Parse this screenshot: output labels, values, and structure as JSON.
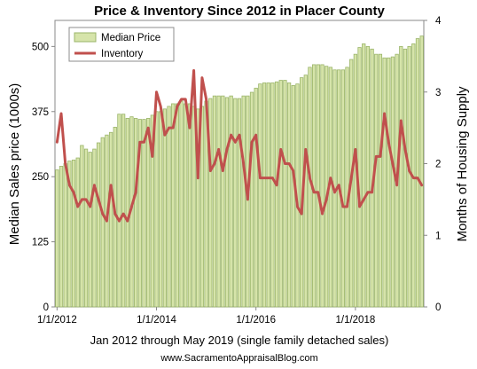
{
  "chart_data": {
    "type": "bar",
    "title": "Price & Inventory Since 2012 in Placer County",
    "ylabel": "Median Sales price (1000s)",
    "y2label": "Months of Housing Supply",
    "xlabel": "Jan 2012 through  May 2019 (single family detached sales)",
    "credit": "www.SacramentoAppraisalBlog.com",
    "ylim": [
      0,
      550
    ],
    "y2lim": [
      0,
      4
    ],
    "yticks": [
      "0",
      "125",
      "250",
      "375",
      "500"
    ],
    "y2ticks": [
      "0",
      "1",
      "2",
      "3",
      "4"
    ],
    "xticks": [
      "1/1/2012",
      "1/1/2014",
      "1/1/2016",
      "1/1/2018"
    ],
    "grid": false,
    "legend": "top-left",
    "colors": {
      "price": "#d6e4aa",
      "price_edge": "#9bb56a",
      "inventory": "#c0504d"
    },
    "series": [
      {
        "name": "Median Price",
        "type": "bar",
        "axis": "left",
        "start": "2012-01",
        "values": [
          263,
          270,
          275,
          280,
          282,
          286,
          310,
          303,
          297,
          303,
          315,
          325,
          330,
          335,
          345,
          370,
          370,
          362,
          365,
          362,
          360,
          360,
          362,
          368,
          375,
          375,
          380,
          385,
          390,
          390,
          395,
          390,
          390,
          385,
          380,
          385,
          395,
          400,
          405,
          405,
          405,
          402,
          405,
          400,
          400,
          405,
          405,
          412,
          420,
          428,
          430,
          430,
          430,
          432,
          435,
          435,
          430,
          425,
          428,
          440,
          445,
          460,
          465,
          465,
          465,
          462,
          460,
          455,
          455,
          455,
          460,
          475,
          485,
          498,
          505,
          500,
          495,
          485,
          485,
          478,
          478,
          480,
          485,
          500,
          495,
          500,
          505,
          515,
          520
        ]
      },
      {
        "name": "Inventory",
        "type": "line",
        "axis": "right",
        "start": "2012-01",
        "values": [
          2.3,
          2.7,
          2.0,
          1.7,
          1.6,
          1.4,
          1.5,
          1.5,
          1.4,
          1.7,
          1.5,
          1.3,
          1.2,
          1.7,
          1.3,
          1.2,
          1.3,
          1.2,
          1.4,
          1.6,
          2.3,
          2.3,
          2.5,
          2.1,
          3.0,
          2.8,
          2.4,
          2.5,
          2.5,
          2.8,
          2.9,
          2.9,
          2.5,
          3.3,
          1.8,
          3.2,
          2.9,
          1.9,
          2.0,
          2.2,
          1.9,
          2.2,
          2.4,
          2.3,
          2.4,
          2.0,
          1.5,
          2.3,
          2.4,
          1.8,
          1.8,
          1.8,
          1.8,
          1.7,
          2.2,
          2.0,
          2.0,
          1.9,
          1.4,
          1.3,
          2.2,
          1.8,
          1.6,
          1.6,
          1.3,
          1.5,
          1.8,
          1.6,
          1.7,
          1.4,
          1.4,
          1.8,
          2.2,
          1.4,
          1.5,
          1.6,
          1.6,
          2.1,
          2.1,
          2.7,
          2.3,
          2.0,
          1.7,
          2.6,
          2.2,
          1.9,
          1.8,
          1.8,
          1.7
        ]
      }
    ]
  }
}
